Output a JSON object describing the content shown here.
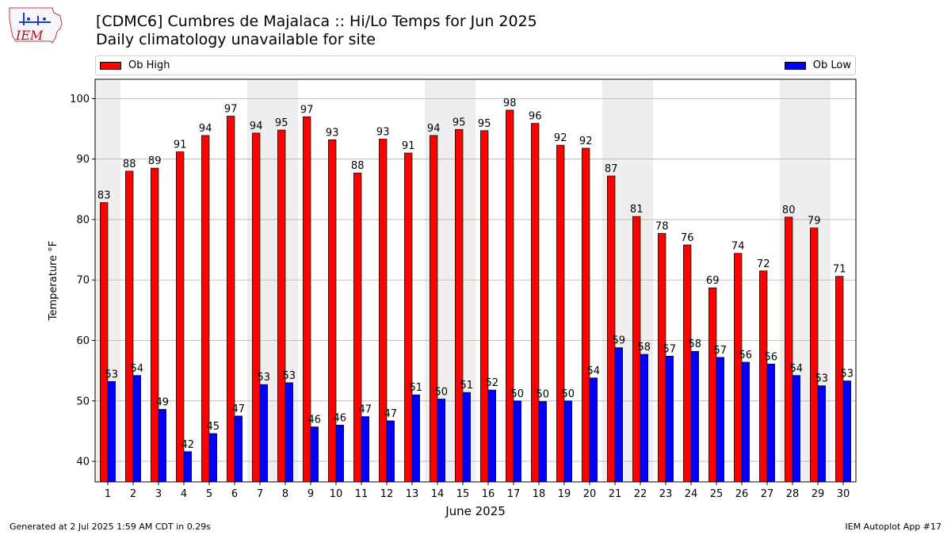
{
  "header": {
    "title": "[CDMC6] Cumbres de Majalaca :: Hi/Lo Temps for Jun 2025",
    "subtitle": "Daily climatology unavailable for site",
    "logo_text": "IEM"
  },
  "legend": {
    "high_label": "Ob High",
    "low_label": "Ob Low"
  },
  "footer": {
    "generated": "Generated at 2 Jul 2025 1:59 AM CDT in 0.29s",
    "app": "IEM Autoplot App #17"
  },
  "colors": {
    "high": "#ff0000",
    "low": "#0000ff",
    "weekend_shade": "#eeeeee",
    "grid": "#b0b0b0"
  },
  "chart_data": {
    "type": "bar",
    "title": "[CDMC6] Cumbres de Majalaca :: Hi/Lo Temps for Jun 2025",
    "subtitle": "Daily climatology unavailable for site",
    "xlabel": "June 2025",
    "ylabel": "Temperature °F",
    "ylim": [
      36.6,
      103.2
    ],
    "yticks": [
      40,
      50,
      60,
      70,
      80,
      90,
      100
    ],
    "grid": "horizontal",
    "legend_placement": "top (above plot)",
    "categories": [
      "1",
      "2",
      "3",
      "4",
      "5",
      "6",
      "7",
      "8",
      "9",
      "10",
      "11",
      "12",
      "13",
      "14",
      "15",
      "16",
      "17",
      "18",
      "19",
      "20",
      "21",
      "22",
      "23",
      "24",
      "25",
      "26",
      "27",
      "28",
      "29",
      "30"
    ],
    "shaded_days": [
      1,
      7,
      8,
      14,
      15,
      21,
      22,
      28,
      29
    ],
    "series": [
      {
        "name": "Ob High",
        "values": [
          82.8,
          88.0,
          88.5,
          91.2,
          93.9,
          97.1,
          94.3,
          94.8,
          97.0,
          93.2,
          87.7,
          93.3,
          91.0,
          93.9,
          94.9,
          94.7,
          98.1,
          95.9,
          92.3,
          91.8,
          87.2,
          80.5,
          77.7,
          75.8,
          68.7,
          74.4,
          71.5,
          80.4,
          78.6,
          70.6
        ],
        "labels": [
          "83",
          "88",
          "89",
          "91",
          "94",
          "97",
          "94",
          "95",
          "97",
          "93",
          "88",
          "93",
          "91",
          "94",
          "95",
          "95",
          "98",
          "96",
          "92",
          "92",
          "87",
          "81",
          "78",
          "76",
          "69",
          "74",
          "72",
          "80",
          "79",
          "71"
        ]
      },
      {
        "name": "Ob Low",
        "values": [
          53.2,
          54.2,
          48.6,
          41.6,
          44.6,
          47.5,
          52.7,
          53.0,
          45.7,
          46.0,
          47.4,
          46.7,
          51.0,
          50.3,
          51.4,
          51.8,
          50.0,
          49.9,
          50.0,
          53.8,
          58.8,
          57.7,
          57.4,
          58.2,
          57.2,
          56.4,
          56.1,
          54.2,
          52.5,
          53.3
        ],
        "labels": [
          "53",
          "54",
          "49",
          "42",
          "45",
          "47",
          "53",
          "53",
          "46",
          "46",
          "47",
          "47",
          "51",
          "50",
          "51",
          "52",
          "50",
          "50",
          "50",
          "54",
          "59",
          "58",
          "57",
          "58",
          "57",
          "56",
          "56",
          "54",
          "53",
          "53"
        ]
      }
    ]
  }
}
